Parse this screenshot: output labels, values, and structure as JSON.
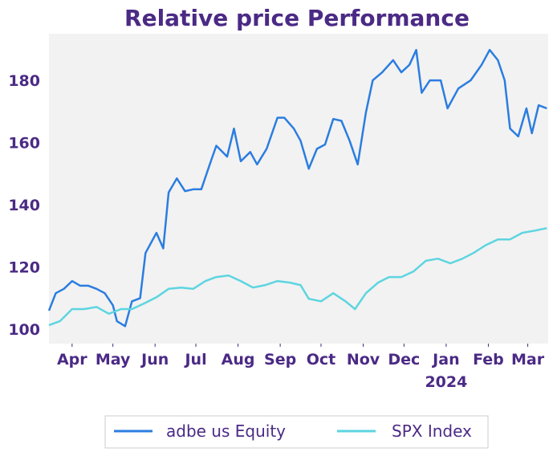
{
  "chart_data": {
    "type": "line",
    "title": "Relative price Performance",
    "xlabel": "",
    "ylabel": "",
    "x_units": "days since 2023-03-15",
    "xlim": [
      0,
      367
    ],
    "ylim": [
      95.4,
      195
    ],
    "yticks": [
      100,
      120,
      140,
      160,
      180
    ],
    "xticks": [
      {
        "day": 17,
        "label": "Apr"
      },
      {
        "day": 47,
        "label": "May"
      },
      {
        "day": 78,
        "label": "Jun"
      },
      {
        "day": 108,
        "label": "Jul"
      },
      {
        "day": 139,
        "label": "Aug"
      },
      {
        "day": 170,
        "label": "Sep"
      },
      {
        "day": 200,
        "label": "Oct"
      },
      {
        "day": 231,
        "label": "Nov"
      },
      {
        "day": 261,
        "label": "Dec"
      },
      {
        "day": 292,
        "label": "Jan",
        "sublabel": "2024"
      },
      {
        "day": 323,
        "label": "Feb"
      },
      {
        "day": 352,
        "label": "Mar"
      }
    ],
    "grid": false,
    "legend_position": "bottom-center",
    "series": [
      {
        "name": "adbe us Equity",
        "color": "#2b7de0",
        "x": [
          0,
          5,
          11,
          17,
          23,
          29,
          35,
          41,
          47,
          50,
          56,
          61,
          67,
          71,
          79,
          84,
          88,
          94,
          100,
          106,
          112,
          119,
          123,
          131,
          136,
          141,
          148,
          153,
          160,
          168,
          173,
          180,
          185,
          191,
          197,
          203,
          209,
          215,
          221,
          227,
          233,
          238,
          245,
          253,
          259,
          265,
          270,
          274,
          280,
          288,
          293,
          301,
          310,
          318,
          324,
          330,
          335,
          339,
          345,
          351,
          355,
          360,
          366
        ],
        "values": [
          106,
          111.6,
          113,
          115.5,
          114,
          114,
          113,
          111.6,
          107.7,
          102.6,
          101,
          109,
          110,
          124.5,
          131,
          126,
          144,
          148.5,
          144.4,
          145,
          145,
          154,
          159,
          155.5,
          164.5,
          154,
          157,
          153,
          158,
          168,
          168,
          164.5,
          160.6,
          151.6,
          158,
          159.4,
          167.6,
          167,
          160.6,
          153,
          169.7,
          180,
          182.6,
          186.5,
          182.6,
          185,
          189.8,
          176,
          180,
          180,
          171,
          177.4,
          180,
          185,
          189.8,
          186.5,
          180,
          164.5,
          162,
          171,
          163,
          172,
          171
        ]
      },
      {
        "name": "SPX Index",
        "color": "#5dd5e0",
        "x": [
          0,
          8,
          17,
          26,
          35,
          44,
          53,
          61,
          70,
          79,
          88,
          97,
          106,
          115,
          123,
          132,
          141,
          150,
          159,
          168,
          177,
          185,
          191,
          200,
          209,
          218,
          225,
          233,
          242,
          250,
          259,
          268,
          277,
          286,
          295,
          304,
          312,
          321,
          330,
          339,
          348,
          357,
          366
        ],
        "values": [
          101.3,
          102.6,
          106.5,
          106.5,
          107.2,
          105,
          106.5,
          106.5,
          108.3,
          110.3,
          113,
          113.4,
          113,
          115.5,
          116.8,
          117.3,
          115.5,
          113.4,
          114.2,
          115.5,
          115,
          114.2,
          109.8,
          109,
          111.6,
          109,
          106.5,
          111.6,
          115,
          116.8,
          116.8,
          118.6,
          122,
          122.7,
          121.2,
          122.7,
          124.5,
          127,
          128.9,
          128.9,
          131,
          131.7,
          132.5
        ]
      }
    ]
  }
}
